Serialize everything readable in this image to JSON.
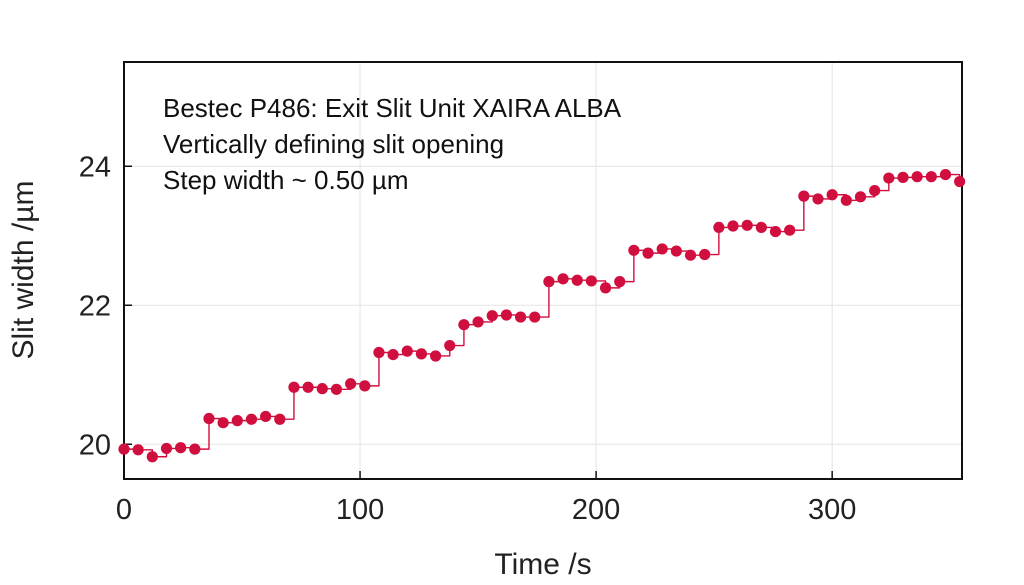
{
  "chart_data": {
    "type": "scatter",
    "xlabel": "Time /s",
    "ylabel": "Slit width /µm",
    "xlim": [
      0,
      355
    ],
    "ylim": [
      19.5,
      25.5
    ],
    "x_ticks": [
      0,
      100,
      200,
      300
    ],
    "x_tick_labels": [
      "0",
      "100",
      "200",
      "300"
    ],
    "y_ticks": [
      20,
      22,
      24
    ],
    "y_tick_labels": [
      "20",
      "22",
      "24"
    ],
    "grid": true,
    "annotations": [
      "Bestec P486: Exit Slit Unit XAIRA ALBA",
      "Vertically defining slit opening",
      "Step width ~ 0.50 µm"
    ],
    "series": [
      {
        "color": "#d10f3f",
        "marker": "circle",
        "points": [
          [
            0,
            19.93
          ],
          [
            6,
            19.92
          ],
          [
            12,
            19.82
          ],
          [
            18,
            19.94
          ],
          [
            24,
            19.95
          ],
          [
            30,
            19.93
          ],
          [
            36,
            20.37
          ],
          [
            42,
            20.31
          ],
          [
            48,
            20.34
          ],
          [
            54,
            20.36
          ],
          [
            60,
            20.4
          ],
          [
            66,
            20.36
          ],
          [
            72,
            20.82
          ],
          [
            78,
            20.82
          ],
          [
            84,
            20.8
          ],
          [
            90,
            20.79
          ],
          [
            96,
            20.87
          ],
          [
            102,
            20.84
          ],
          [
            108,
            21.32
          ],
          [
            114,
            21.29
          ],
          [
            120,
            21.34
          ],
          [
            126,
            21.3
          ],
          [
            132,
            21.27
          ],
          [
            138,
            21.42
          ],
          [
            144,
            21.72
          ],
          [
            150,
            21.76
          ],
          [
            156,
            21.85
          ],
          [
            162,
            21.86
          ],
          [
            168,
            21.83
          ],
          [
            174,
            21.83
          ],
          [
            180,
            22.34
          ],
          [
            186,
            22.38
          ],
          [
            192,
            22.36
          ],
          [
            198,
            22.35
          ],
          [
            204,
            22.25
          ],
          [
            210,
            22.34
          ],
          [
            216,
            22.79
          ],
          [
            222,
            22.75
          ],
          [
            228,
            22.81
          ],
          [
            234,
            22.78
          ],
          [
            240,
            22.72
          ],
          [
            246,
            22.73
          ],
          [
            252,
            23.12
          ],
          [
            258,
            23.14
          ],
          [
            264,
            23.15
          ],
          [
            270,
            23.12
          ],
          [
            276,
            23.06
          ],
          [
            282,
            23.08
          ],
          [
            288,
            23.57
          ],
          [
            294,
            23.53
          ],
          [
            300,
            23.59
          ],
          [
            306,
            23.51
          ],
          [
            312,
            23.56
          ],
          [
            318,
            23.65
          ],
          [
            324,
            23.83
          ],
          [
            330,
            23.84
          ],
          [
            336,
            23.85
          ],
          [
            342,
            23.85
          ],
          [
            348,
            23.88
          ],
          [
            354,
            23.78
          ]
        ]
      }
    ]
  }
}
